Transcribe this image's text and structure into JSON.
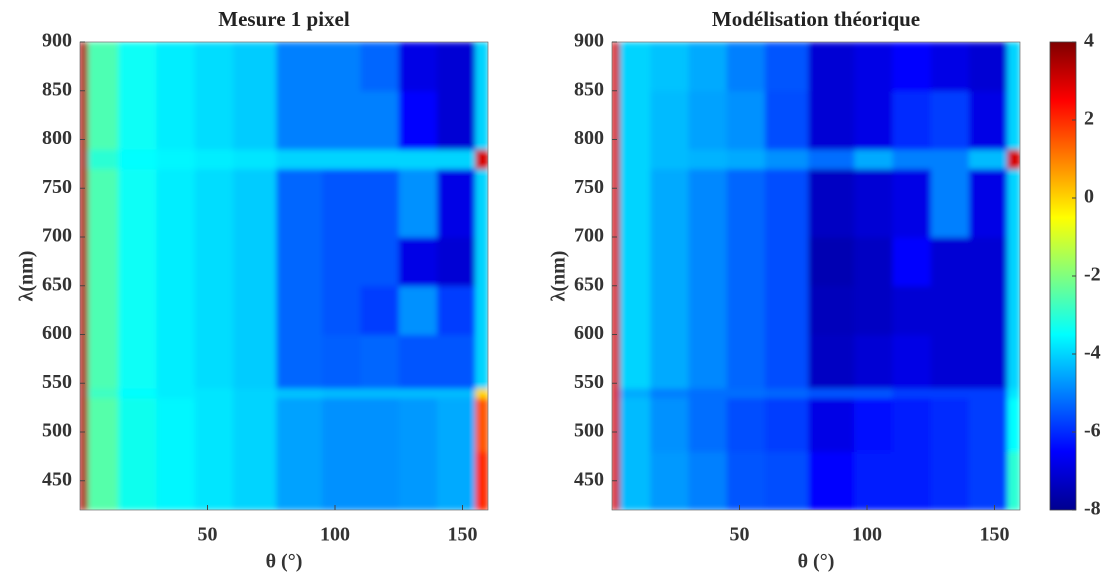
{
  "chart_data": [
    {
      "type": "heatmap",
      "title": "Mesure 1 pixel",
      "xlabel": "θ (°)",
      "ylabel": "λ(nm)",
      "xlim": [
        0,
        160
      ],
      "xticks": [
        50,
        100,
        150
      ],
      "ylim": [
        420,
        900
      ],
      "yticks": [
        450,
        500,
        550,
        600,
        650,
        700,
        750,
        800,
        850,
        900
      ],
      "clim": [
        -8,
        4
      ],
      "xbins": [
        0,
        3,
        15,
        30,
        45,
        60,
        77,
        95,
        110,
        125,
        140,
        155,
        160
      ],
      "ybins": [
        420,
        480,
        535,
        545,
        600,
        650,
        700,
        770,
        790,
        850,
        900
      ],
      "z": [
        [
          3.5,
          -2.5,
          -3.3,
          -3.6,
          -3.8,
          -4,
          -4.6,
          -4.8,
          -4.8,
          -4.7,
          -4.5,
          2
        ],
        [
          3.5,
          -2.5,
          -3.3,
          -3.6,
          -3.8,
          -4,
          -4.6,
          -4.8,
          -4.8,
          -4.7,
          -4.5,
          1.5
        ],
        [
          3.5,
          -2.8,
          -3.5,
          -3.7,
          -3.8,
          -4,
          -4.2,
          -4.3,
          -4.3,
          -4.3,
          -4.3,
          0
        ],
        [
          3.5,
          -2.6,
          -3.4,
          -3.7,
          -3.9,
          -4.1,
          -5.3,
          -5.4,
          -5.3,
          -5.5,
          -5.5,
          -4
        ],
        [
          3.5,
          -2.6,
          -3.4,
          -3.7,
          -3.9,
          -4.1,
          -5.3,
          -5.5,
          -5.8,
          -4.8,
          -5.8,
          -4
        ],
        [
          3.5,
          -2.6,
          -3.4,
          -3.7,
          -3.9,
          -4.1,
          -5.3,
          -5.5,
          -5.5,
          -6.8,
          -7,
          -4
        ],
        [
          3.5,
          -2.6,
          -3.4,
          -3.7,
          -3.9,
          -4.1,
          -5.3,
          -5.5,
          -5.5,
          -4.8,
          -6.8,
          -4
        ],
        [
          3.5,
          -3,
          -3.5,
          -3.6,
          -3.7,
          -3.8,
          -4,
          -4,
          -4,
          -4,
          -4,
          3
        ],
        [
          3.5,
          -2.6,
          -3.4,
          -3.7,
          -3.9,
          -4.1,
          -5,
          -5,
          -5,
          -6.5,
          -7,
          -4
        ],
        [
          3.5,
          -2.6,
          -3.4,
          -3.7,
          -3.9,
          -4.1,
          -5,
          -5,
          -5.3,
          -6.8,
          -7,
          -4
        ]
      ]
    },
    {
      "type": "heatmap",
      "title": "Modélisation théorique",
      "xlabel": "θ (°)",
      "ylabel": "λ(nm)",
      "xlim": [
        0,
        160
      ],
      "xticks": [
        50,
        100,
        150
      ],
      "ylim": [
        420,
        900
      ],
      "yticks": [
        450,
        500,
        550,
        600,
        650,
        700,
        750,
        800,
        850,
        900
      ],
      "clim": [
        -8,
        4
      ],
      "cticks": [
        -8,
        -6,
        -4,
        -2,
        0,
        2,
        4
      ],
      "xbins": [
        0,
        3,
        15,
        30,
        45,
        60,
        77,
        95,
        110,
        125,
        140,
        155,
        160
      ],
      "ybins": [
        420,
        480,
        535,
        545,
        600,
        650,
        700,
        770,
        790,
        850,
        900
      ],
      "z": [
        [
          3,
          -4.3,
          -4.7,
          -5,
          -5.5,
          -5.6,
          -6.5,
          -6.2,
          -6.2,
          -6,
          -5.8,
          -3
        ],
        [
          3,
          -4.3,
          -4.8,
          -5.2,
          -5.6,
          -5.8,
          -6.8,
          -6.3,
          -6.2,
          -6,
          -5.8,
          -3.5
        ],
        [
          3,
          -4.5,
          -5,
          -5.2,
          -5.2,
          -5.3,
          -5.5,
          -5.5,
          -5.8,
          -5.8,
          -5.8,
          -3.8
        ],
        [
          3,
          -4,
          -4.5,
          -4.9,
          -5.3,
          -5.6,
          -7.2,
          -7,
          -6.8,
          -7,
          -7,
          -4
        ],
        [
          3,
          -4,
          -4.5,
          -4.9,
          -5.3,
          -5.6,
          -7.3,
          -7.2,
          -7,
          -7,
          -7,
          -4
        ],
        [
          3,
          -4,
          -4.5,
          -4.9,
          -5.3,
          -5.6,
          -7.4,
          -7.2,
          -6.5,
          -7,
          -7,
          -4
        ],
        [
          3,
          -4,
          -4.5,
          -4.9,
          -5.3,
          -5.6,
          -7.2,
          -7,
          -6.8,
          -5,
          -6.8,
          -4
        ],
        [
          3,
          -4,
          -4.3,
          -4.4,
          -4.5,
          -4.8,
          -5.2,
          -4.5,
          -5,
          -5,
          -4.3,
          3
        ],
        [
          3,
          -4,
          -4.3,
          -4.6,
          -4.8,
          -5.6,
          -7,
          -6.8,
          -6,
          -5.8,
          -6.8,
          -4
        ],
        [
          3,
          -4,
          -4.2,
          -4.5,
          -5,
          -5.5,
          -7,
          -6.8,
          -6.5,
          -6.8,
          -7,
          -4
        ]
      ]
    }
  ]
}
